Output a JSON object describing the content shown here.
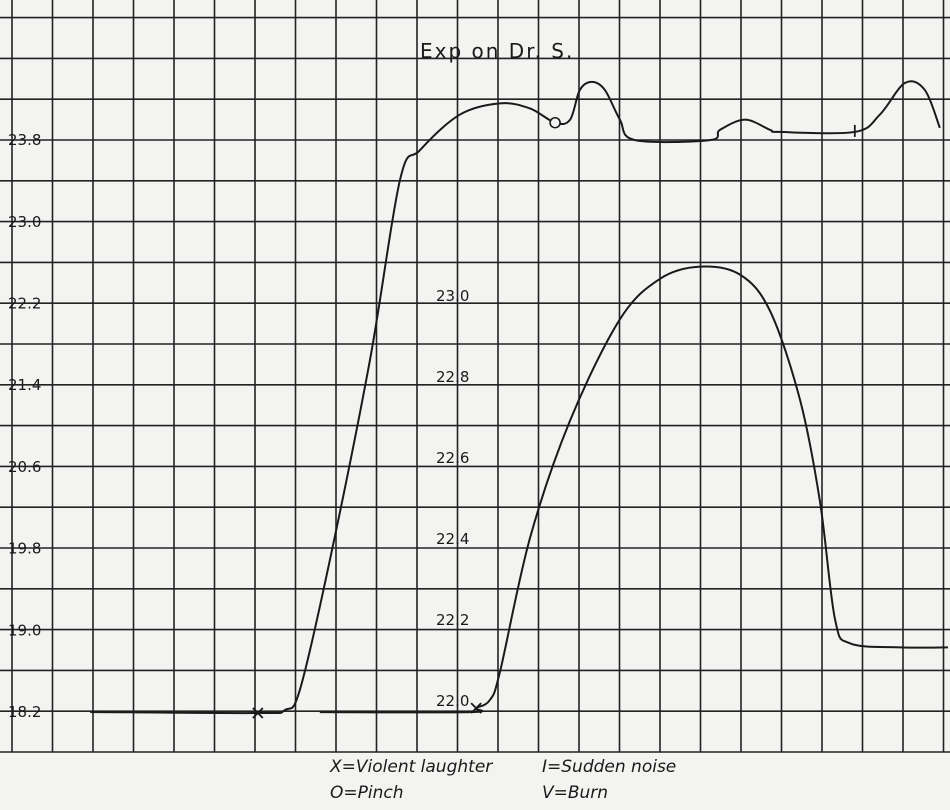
{
  "chart_data": {
    "type": "line",
    "title": "Exp on Dr. S.",
    "xlabel": "",
    "ylabel": "",
    "grid": true,
    "xlim": [
      0,
      23
    ],
    "left_axis": {
      "ticks": [
        "23.8",
        "23.0",
        "22.2",
        "21.4",
        "20.6",
        "19.8",
        "19.0",
        "18.2"
      ],
      "ylim": [
        17.8,
        25.0
      ]
    },
    "inner_axis": {
      "ticks": [
        "23.0",
        "22.8",
        "22.6",
        "22.4",
        "22.2",
        "22.0"
      ],
      "ylim": [
        21.9,
        23.3
      ]
    },
    "series": [
      {
        "name": "curve-left-scale",
        "axis": "left",
        "x": [
          1.93,
          6.07,
          6.74,
          7.11,
          7.85,
          8.84,
          9.58,
          10.07,
          11.06,
          12.05,
          12.79,
          13.41,
          13.78,
          14.02,
          14.32,
          14.64,
          15.01,
          15.38,
          17.23,
          17.48,
          18.1,
          18.72,
          18.96,
          20.81,
          21.43,
          22.05,
          22.54,
          22.91
        ],
        "y": [
          18.2,
          18.19,
          18.22,
          18.42,
          19.69,
          21.65,
          23.41,
          23.7,
          24.05,
          24.16,
          24.11,
          23.97,
          24.0,
          24.29,
          24.37,
          24.29,
          24.0,
          23.8,
          23.8,
          23.9,
          24.0,
          23.9,
          23.88,
          23.88,
          24.05,
          24.36,
          24.29,
          23.92
        ]
      },
      {
        "name": "curve-inner-scale",
        "axis": "inner",
        "x": [
          7.6,
          11.31,
          11.46,
          11.8,
          12.05,
          12.79,
          13.78,
          15.01,
          16.0,
          16.99,
          17.98,
          18.72,
          19.46,
          19.95,
          20.32,
          20.69,
          21.93,
          23.11
        ],
        "y": [
          21.97,
          21.97,
          21.98,
          22.0,
          22.07,
          22.4,
          22.69,
          22.94,
          23.04,
          23.07,
          23.05,
          22.96,
          22.74,
          22.49,
          22.2,
          22.14,
          22.13,
          22.13
        ]
      }
    ],
    "markers": [
      {
        "symbol": "X",
        "series": 0,
        "x": 6.07,
        "y": 18.19
      },
      {
        "symbol": "O",
        "series": 0,
        "x": 13.41,
        "y": 23.97
      },
      {
        "symbol": "I",
        "series": 0,
        "x": 20.81,
        "y": 23.88
      },
      {
        "symbol": "X",
        "series": 1,
        "x": 11.46,
        "y": 21.98
      }
    ],
    "legend": [
      "X=Violent laughter",
      "I=Sudden noise",
      "O=Pinch",
      "V=Burn"
    ]
  }
}
